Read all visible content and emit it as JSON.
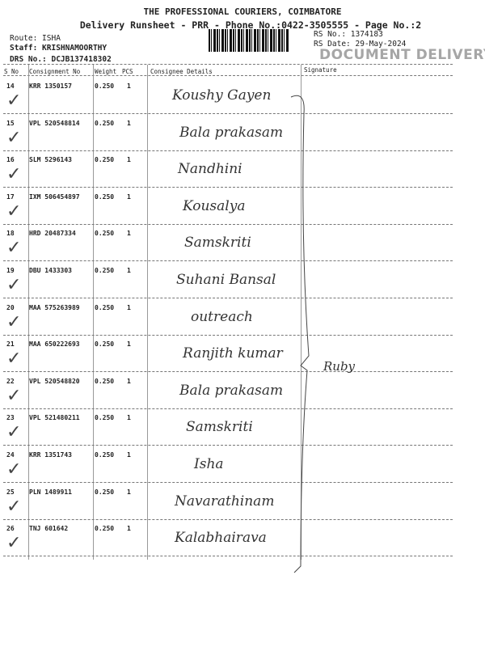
{
  "header": {
    "company": "THE PROFESSIONAL COURIERS, COIMBATORE",
    "subtitle": "Delivery Runsheet - PRR - Phone No.:0422-3505555 - Page No.:2",
    "route": "Route: ISHA",
    "staff": "Staff: KRISHNAMOORTHY",
    "drs_no": "DRS No.: DCJB137418302",
    "rs_no": "RS No.: 1374183",
    "rs_date": "RS Date: 29-May-2024",
    "stamp": "DOCUMENT DELIVERY"
  },
  "columns": [
    "S No",
    "Consignment No",
    "Weight",
    "PCS",
    "Consignee Details",
    "Signature"
  ],
  "rows": [
    {
      "sno": "14",
      "consignment": "KRR 1350157",
      "weight": "0.250",
      "pcs": "1",
      "consignee": "Koushy Gayen",
      "delivered": true
    },
    {
      "sno": "15",
      "consignment": "VPL 520548814",
      "weight": "0.250",
      "pcs": "1",
      "consignee": "Bala prakasam",
      "delivered": true
    },
    {
      "sno": "16",
      "consignment": "SLM 5296143",
      "weight": "0.250",
      "pcs": "1",
      "consignee": "Nandhini",
      "delivered": true
    },
    {
      "sno": "17",
      "consignment": "IXM 506454897",
      "weight": "0.250",
      "pcs": "1",
      "consignee": "Kousalya",
      "delivered": true
    },
    {
      "sno": "18",
      "consignment": "HRD 20487334",
      "weight": "0.250",
      "pcs": "1",
      "consignee": "Samskriti",
      "delivered": true
    },
    {
      "sno": "19",
      "consignment": "DBU 1433303",
      "weight": "0.250",
      "pcs": "1",
      "consignee": "Suhani Bansal",
      "delivered": true
    },
    {
      "sno": "20",
      "consignment": "MAA 575263989",
      "weight": "0.250",
      "pcs": "1",
      "consignee": "outreach",
      "delivered": true
    },
    {
      "sno": "21",
      "consignment": "MAA 650222693",
      "weight": "0.250",
      "pcs": "1",
      "consignee": "Ranjith kumar",
      "delivered": true
    },
    {
      "sno": "22",
      "consignment": "VPL 520548820",
      "weight": "0.250",
      "pcs": "1",
      "consignee": "Bala prakasam",
      "delivered": true
    },
    {
      "sno": "23",
      "consignment": "VPL 521480211",
      "weight": "0.250",
      "pcs": "1",
      "consignee": "Samskriti",
      "delivered": true
    },
    {
      "sno": "24",
      "consignment": "KRR 1351743",
      "weight": "0.250",
      "pcs": "1",
      "consignee": "Isha",
      "delivered": true
    },
    {
      "sno": "25",
      "consignment": "PLN 1489911",
      "weight": "0.250",
      "pcs": "1",
      "consignee": "Navarathinam",
      "delivered": true
    },
    {
      "sno": "26",
      "consignment": "TNJ 601642",
      "weight": "0.250",
      "pcs": "1",
      "consignee": "Kalabhairava",
      "delivered": true
    }
  ],
  "signature": {
    "name": "Ruby"
  },
  "icons": {
    "check": "checkmark-icon"
  }
}
